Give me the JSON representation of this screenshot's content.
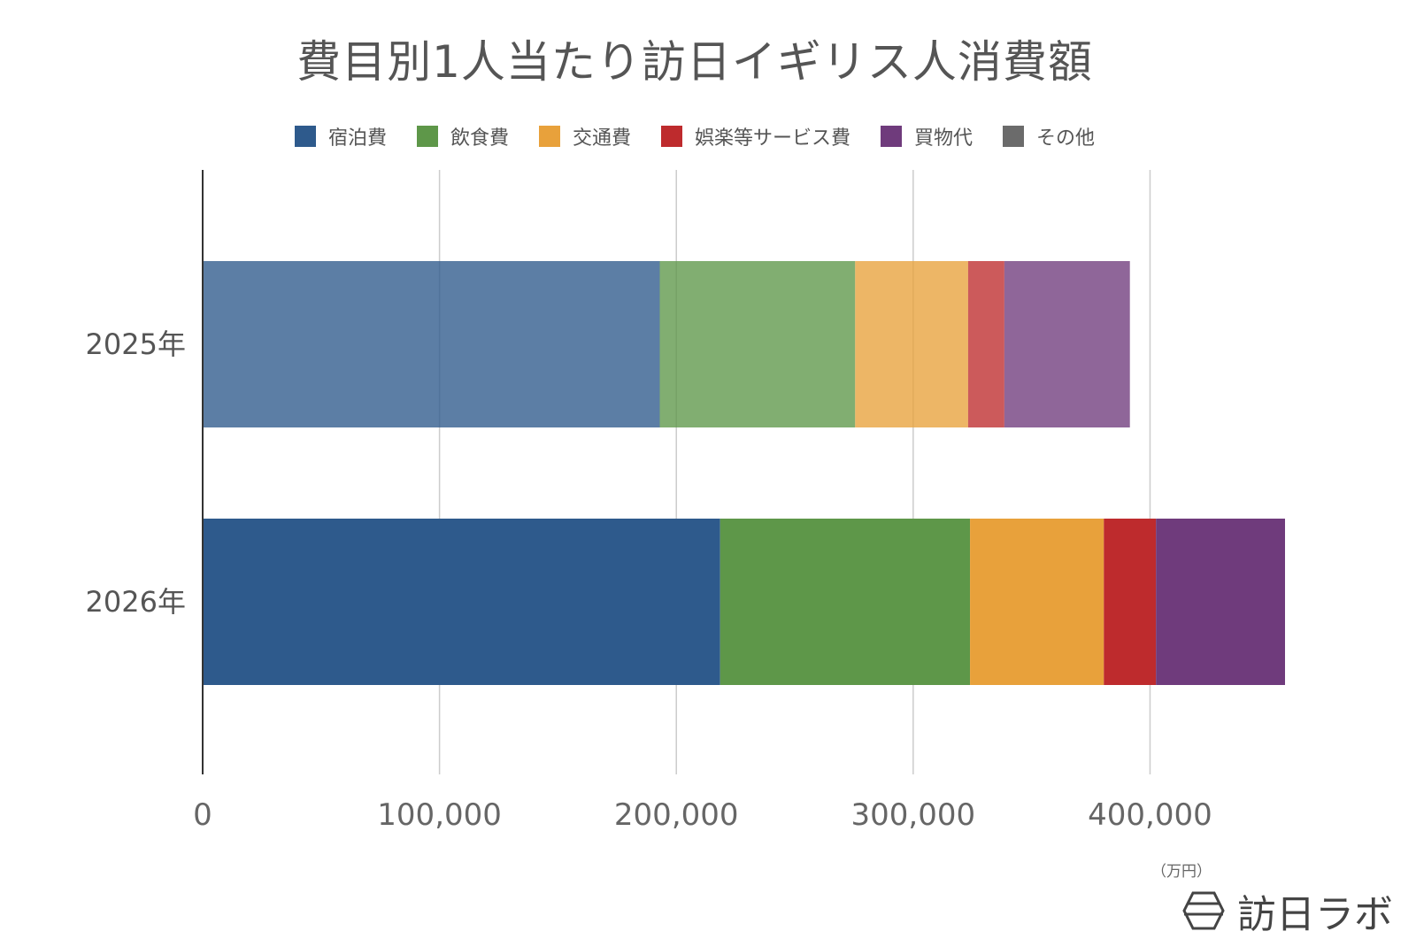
{
  "chart_data": {
    "type": "bar",
    "orientation": "horizontal",
    "stacked": true,
    "title": "費目別1人当たり訪日イギリス人消費額",
    "categories": [
      "2025年",
      "2026年"
    ],
    "series": [
      {
        "name": "宿泊費",
        "values": [
          193000,
          218500
        ],
        "color": "#2e5a8c"
      },
      {
        "name": "飲食費",
        "values": [
          82500,
          105500
        ],
        "color": "#5e9749"
      },
      {
        "name": "交通費",
        "values": [
          47700,
          56500
        ],
        "color": "#e8a13b"
      },
      {
        "name": "娯楽等サービス費",
        "values": [
          15300,
          22000
        ],
        "color": "#be2b2d"
      },
      {
        "name": "買物代",
        "values": [
          53000,
          54500
        ],
        "color": "#6f3b7c"
      },
      {
        "name": "その他",
        "values": [
          0,
          0
        ],
        "color": "#6b6b6b"
      }
    ],
    "category_opacity": [
      0.78,
      1
    ],
    "xlim": [
      0,
      457000
    ],
    "xticks": [
      0,
      100000,
      200000,
      300000,
      400000
    ],
    "xtick_labels": [
      "0",
      "100,000",
      "200,000",
      "300,000",
      "400,000"
    ],
    "grid": true,
    "legend_position": "top",
    "unit_label": "（万円）"
  },
  "brand": {
    "name": "訪日ラボ",
    "icon": "hexagon-logo-icon"
  }
}
